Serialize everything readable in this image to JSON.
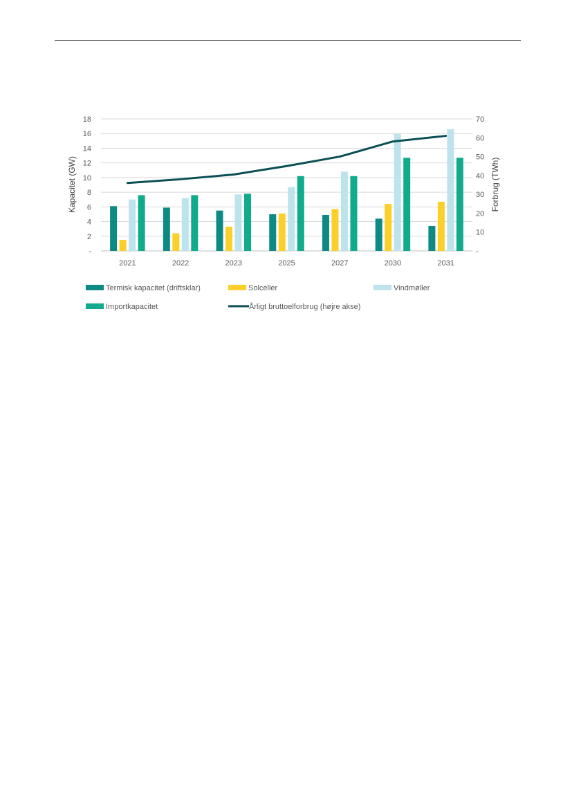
{
  "chart_data": {
    "type": "bar",
    "categories": [
      "2021",
      "2022",
      "2023",
      "2025",
      "2027",
      "2030",
      "2031"
    ],
    "series": [
      {
        "name": "Termisk kapacitet (driftsklar)",
        "axis": "left",
        "kind": "bar",
        "color": "#0e8a84",
        "values": [
          6.1,
          5.9,
          5.5,
          5.0,
          4.9,
          4.4,
          3.4
        ]
      },
      {
        "name": "Solceller",
        "axis": "left",
        "kind": "bar",
        "color": "#fcd02a",
        "values": [
          1.5,
          2.4,
          3.3,
          5.1,
          5.7,
          6.4,
          6.7
        ]
      },
      {
        "name": "Vindmøller",
        "axis": "left",
        "kind": "bar",
        "color": "#bde3ec",
        "values": [
          7.0,
          7.2,
          7.7,
          8.7,
          10.8,
          16.0,
          16.6
        ]
      },
      {
        "name": "Importkapacitet",
        "axis": "left",
        "kind": "bar",
        "color": "#10ab8c",
        "values": [
          7.6,
          7.6,
          7.8,
          10.2,
          10.2,
          12.7,
          12.7
        ]
      },
      {
        "name": "Årligt bruttoelforbrug (højre akse)",
        "axis": "right",
        "kind": "line",
        "color": "#0b4f55",
        "values": [
          36,
          38,
          40.5,
          45,
          50,
          58,
          61
        ]
      }
    ],
    "yaxis_left": {
      "label": "Kapacitet (GW)",
      "range": [
        0,
        18
      ],
      "ticks": [
        "-",
        "2",
        "4",
        "6",
        "8",
        "10",
        "12",
        "14",
        "16",
        "18"
      ]
    },
    "yaxis_right": {
      "label": "Forbrug (TWh)",
      "range": [
        0,
        70
      ],
      "ticks": [
        "-",
        "10",
        "20",
        "30",
        "40",
        "50",
        "60",
        "70"
      ]
    },
    "grid": "horizontal",
    "legend_position": "bottom"
  }
}
